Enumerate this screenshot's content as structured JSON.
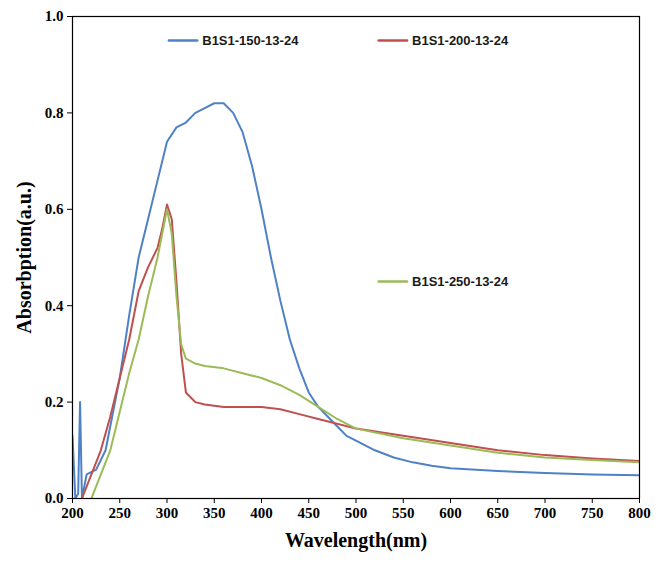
{
  "chart_data": {
    "type": "line",
    "xlabel": "Wavelength(nm)",
    "ylabel": "Absorbption(a.u.)",
    "xlim": [
      200,
      800
    ],
    "xticks": [
      200,
      250,
      300,
      350,
      400,
      450,
      500,
      550,
      600,
      650,
      700,
      750,
      800
    ],
    "ylim": [
      0,
      1
    ],
    "yticks": [
      0,
      0.2,
      0.4,
      0.6,
      0.8,
      1
    ],
    "grid": false,
    "legend": "top",
    "series": [
      {
        "name": "B1S1-150-13-24",
        "color": "#4f81c7",
        "x": [
          200,
          203,
          206,
          208,
          210,
          215,
          225,
          235,
          250,
          260,
          270,
          280,
          290,
          300,
          310,
          320,
          330,
          340,
          350,
          360,
          370,
          380,
          390,
          400,
          410,
          420,
          430,
          440,
          450,
          460,
          470,
          480,
          490,
          500,
          520,
          540,
          560,
          580,
          600,
          650,
          700,
          750,
          800
        ],
        "values": [
          0.13,
          0.0,
          0.01,
          0.2,
          0.0,
          0.05,
          0.06,
          0.1,
          0.25,
          0.38,
          0.5,
          0.58,
          0.66,
          0.74,
          0.77,
          0.78,
          0.8,
          0.81,
          0.82,
          0.82,
          0.8,
          0.76,
          0.69,
          0.6,
          0.5,
          0.41,
          0.33,
          0.27,
          0.22,
          0.19,
          0.17,
          0.15,
          0.13,
          0.12,
          0.1,
          0.085,
          0.075,
          0.068,
          0.063,
          0.057,
          0.053,
          0.05,
          0.048
        ]
      },
      {
        "name": "B1S1-200-13-24",
        "color": "#c0504d",
        "x": [
          210,
          220,
          230,
          240,
          250,
          260,
          270,
          280,
          290,
          295,
          300,
          305,
          310,
          315,
          320,
          330,
          340,
          360,
          380,
          400,
          420,
          440,
          460,
          480,
          500,
          550,
          600,
          650,
          700,
          750,
          800
        ],
        "values": [
          0.0,
          0.05,
          0.1,
          0.17,
          0.25,
          0.33,
          0.43,
          0.48,
          0.52,
          0.56,
          0.61,
          0.58,
          0.45,
          0.3,
          0.22,
          0.2,
          0.195,
          0.19,
          0.19,
          0.19,
          0.185,
          0.175,
          0.165,
          0.155,
          0.145,
          0.13,
          0.115,
          0.1,
          0.09,
          0.083,
          0.078
        ]
      },
      {
        "name": "B1S1-250-13-24",
        "color": "#9bbb59",
        "x": [
          220,
          230,
          240,
          250,
          260,
          270,
          280,
          290,
          300,
          305,
          310,
          315,
          320,
          330,
          340,
          360,
          380,
          400,
          420,
          440,
          460,
          480,
          500,
          550,
          600,
          650,
          700,
          750,
          800
        ],
        "values": [
          0.0,
          0.05,
          0.1,
          0.18,
          0.26,
          0.33,
          0.42,
          0.5,
          0.6,
          0.55,
          0.42,
          0.32,
          0.29,
          0.28,
          0.275,
          0.27,
          0.26,
          0.25,
          0.235,
          0.215,
          0.19,
          0.165,
          0.145,
          0.125,
          0.11,
          0.095,
          0.085,
          0.08,
          0.075
        ]
      }
    ]
  }
}
